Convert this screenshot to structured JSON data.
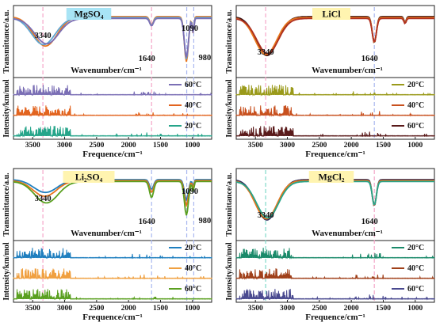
{
  "chart_data": [
    {
      "type": "line",
      "title": "MgSO₄",
      "title_bg": "#a8e4f5",
      "ylabel_top": "Transmittance/a.u.",
      "ylabel_bottom": "Intensity/km/mol",
      "xlabel_mid": "Wavenumber/cm⁻¹",
      "xlabel": "Frequence/cm⁻¹",
      "x_reversed": true,
      "xlim": [
        3800,
        700
      ],
      "xticks": [
        3500,
        3000,
        2500,
        2000,
        1500,
        1000
      ],
      "peak_labels": [
        {
          "x": 3340,
          "text": "3340"
        },
        {
          "x": 1640,
          "text": "1640"
        },
        {
          "x": 1090,
          "text": "1090"
        },
        {
          "x": 980,
          "text": "980"
        }
      ],
      "dashed_markers": [
        {
          "x": 3340,
          "color": "#f4a6c8"
        },
        {
          "x": 1640,
          "color": "#f4a6c8"
        },
        {
          "x": 1090,
          "color": "#a9b7f0"
        },
        {
          "x": 980,
          "color": "#a9b7f0"
        }
      ],
      "legend": [
        {
          "name": "60°C",
          "color": "#7b6fb5"
        },
        {
          "name": "40°C",
          "color": "#e2641f"
        },
        {
          "name": "20°C",
          "color": "#26a58a"
        }
      ],
      "ir_spectra": [
        {
          "color": "#e8761c",
          "depth": 1.0,
          "shift": 0
        },
        {
          "color": "#5fa3cf",
          "depth": 0.92,
          "shift": 30
        },
        {
          "color": "#7b6fb5",
          "depth": 0.86,
          "shift": -20
        }
      ],
      "ir_bands": [
        {
          "x": 3300,
          "w": 260,
          "d": 0.62
        },
        {
          "x": 1640,
          "w": 40,
          "d": 0.18
        },
        {
          "x": 1095,
          "w": 45,
          "d": 0.95
        },
        {
          "x": 990,
          "w": 18,
          "d": 0.35
        }
      ]
    },
    {
      "type": "line",
      "title": "LiCl",
      "title_bg": "#fff4b0",
      "ylabel_top": "Transmittance/a.u.",
      "ylabel_bottom": "Intensity/km/mol",
      "xlabel_mid": "Wavenumber/cm⁻¹",
      "xlabel": "Frequence/cm⁻¹",
      "x_reversed": true,
      "xlim": [
        3800,
        700
      ],
      "xticks": [
        3500,
        3000,
        2500,
        2000,
        1500,
        1000
      ],
      "peak_labels": [
        {
          "x": 3340,
          "text": "3340"
        },
        {
          "x": 1640,
          "text": "1640"
        }
      ],
      "dashed_markers": [
        {
          "x": 3340,
          "color": "#f4a6c8"
        },
        {
          "x": 1640,
          "color": "#a9b7f0"
        }
      ],
      "legend": [
        {
          "name": "20°C",
          "color": "#9a9a1a"
        },
        {
          "name": "40°C",
          "color": "#c8501e"
        },
        {
          "name": "60°C",
          "color": "#5a1a1a"
        }
      ],
      "ir_spectra": [
        {
          "color": "#3a1010",
          "depth": 1.0,
          "shift": 0
        },
        {
          "color": "#e8761c",
          "depth": 0.95,
          "shift": 15
        },
        {
          "color": "#b03020",
          "depth": 0.9,
          "shift": -10
        }
      ],
      "ir_bands": [
        {
          "x": 3320,
          "w": 240,
          "d": 0.82
        },
        {
          "x": 1640,
          "w": 45,
          "d": 0.55
        },
        {
          "x": 1160,
          "w": 25,
          "d": 0.12
        }
      ]
    },
    {
      "type": "line",
      "title": "Li₂SO₄",
      "title_bg": "#fff4b0",
      "ylabel_top": "Transmittance/a.u.",
      "ylabel_bottom": "Intensity/km/mol",
      "xlabel_mid": "Wavenumber/cm⁻¹",
      "xlabel": "Frequence/cm⁻¹",
      "x_reversed": true,
      "xlim": [
        3800,
        700
      ],
      "xticks": [
        3500,
        3000,
        2500,
        2000,
        1500,
        1000
      ],
      "peak_labels": [
        {
          "x": 3340,
          "text": "3340"
        },
        {
          "x": 1640,
          "text": "1640"
        },
        {
          "x": 1090,
          "text": "1090"
        },
        {
          "x": 980,
          "text": "980"
        }
      ],
      "dashed_markers": [
        {
          "x": 3340,
          "color": "#f4a6c8"
        },
        {
          "x": 1640,
          "color": "#a9b7f0"
        },
        {
          "x": 1090,
          "color": "#a9b7f0"
        },
        {
          "x": 980,
          "color": "#a9b7f0"
        }
      ],
      "legend": [
        {
          "name": "20°C",
          "color": "#1f7fbf"
        },
        {
          "name": "40°C",
          "color": "#f0a040"
        },
        {
          "name": "60°C",
          "color": "#5aa020"
        }
      ],
      "ir_spectra": [
        {
          "color": "#1f7fbf",
          "depth": 0.45,
          "shift": 0
        },
        {
          "color": "#e8761c",
          "depth": 0.55,
          "shift": 10
        },
        {
          "color": "#5aa020",
          "depth": 0.75,
          "shift": -15
        }
      ],
      "ir_bands": [
        {
          "x": 3300,
          "w": 260,
          "d": 0.6
        },
        {
          "x": 1640,
          "w": 45,
          "d": 0.45
        },
        {
          "x": 1095,
          "w": 45,
          "d": 0.95
        },
        {
          "x": 990,
          "w": 18,
          "d": 0.3
        }
      ]
    },
    {
      "type": "line",
      "title": "MgCl₂",
      "title_bg": "#fff4b0",
      "ylabel_top": "Transmittance/a.u.",
      "ylabel_bottom": "Intensity/km/mol",
      "xlabel_mid": "Wavenumber/cm⁻¹",
      "xlabel": "Frequence/cm⁻¹",
      "x_reversed": true,
      "xlim": [
        3800,
        700
      ],
      "xticks": [
        3500,
        3000,
        2500,
        2000,
        1500,
        1000
      ],
      "peak_labels": [
        {
          "x": 3340,
          "text": "3340"
        },
        {
          "x": 1640,
          "text": "1640"
        }
      ],
      "dashed_markers": [
        {
          "x": 3340,
          "color": "#7fd8c8"
        },
        {
          "x": 1640,
          "color": "#f4a6c8"
        }
      ],
      "legend": [
        {
          "name": "20°C",
          "color": "#1a8a6a"
        },
        {
          "name": "40°C",
          "color": "#a0401a"
        },
        {
          "name": "60°C",
          "color": "#4a4a90"
        }
      ],
      "ir_spectra": [
        {
          "color": "#2a2a5a",
          "depth": 1.0,
          "shift": 0
        },
        {
          "color": "#e8761c",
          "depth": 0.95,
          "shift": 10
        },
        {
          "color": "#26a58a",
          "depth": 0.9,
          "shift": -10
        }
      ],
      "ir_bands": [
        {
          "x": 3320,
          "w": 240,
          "d": 0.85
        },
        {
          "x": 1640,
          "w": 45,
          "d": 0.55
        }
      ]
    }
  ]
}
